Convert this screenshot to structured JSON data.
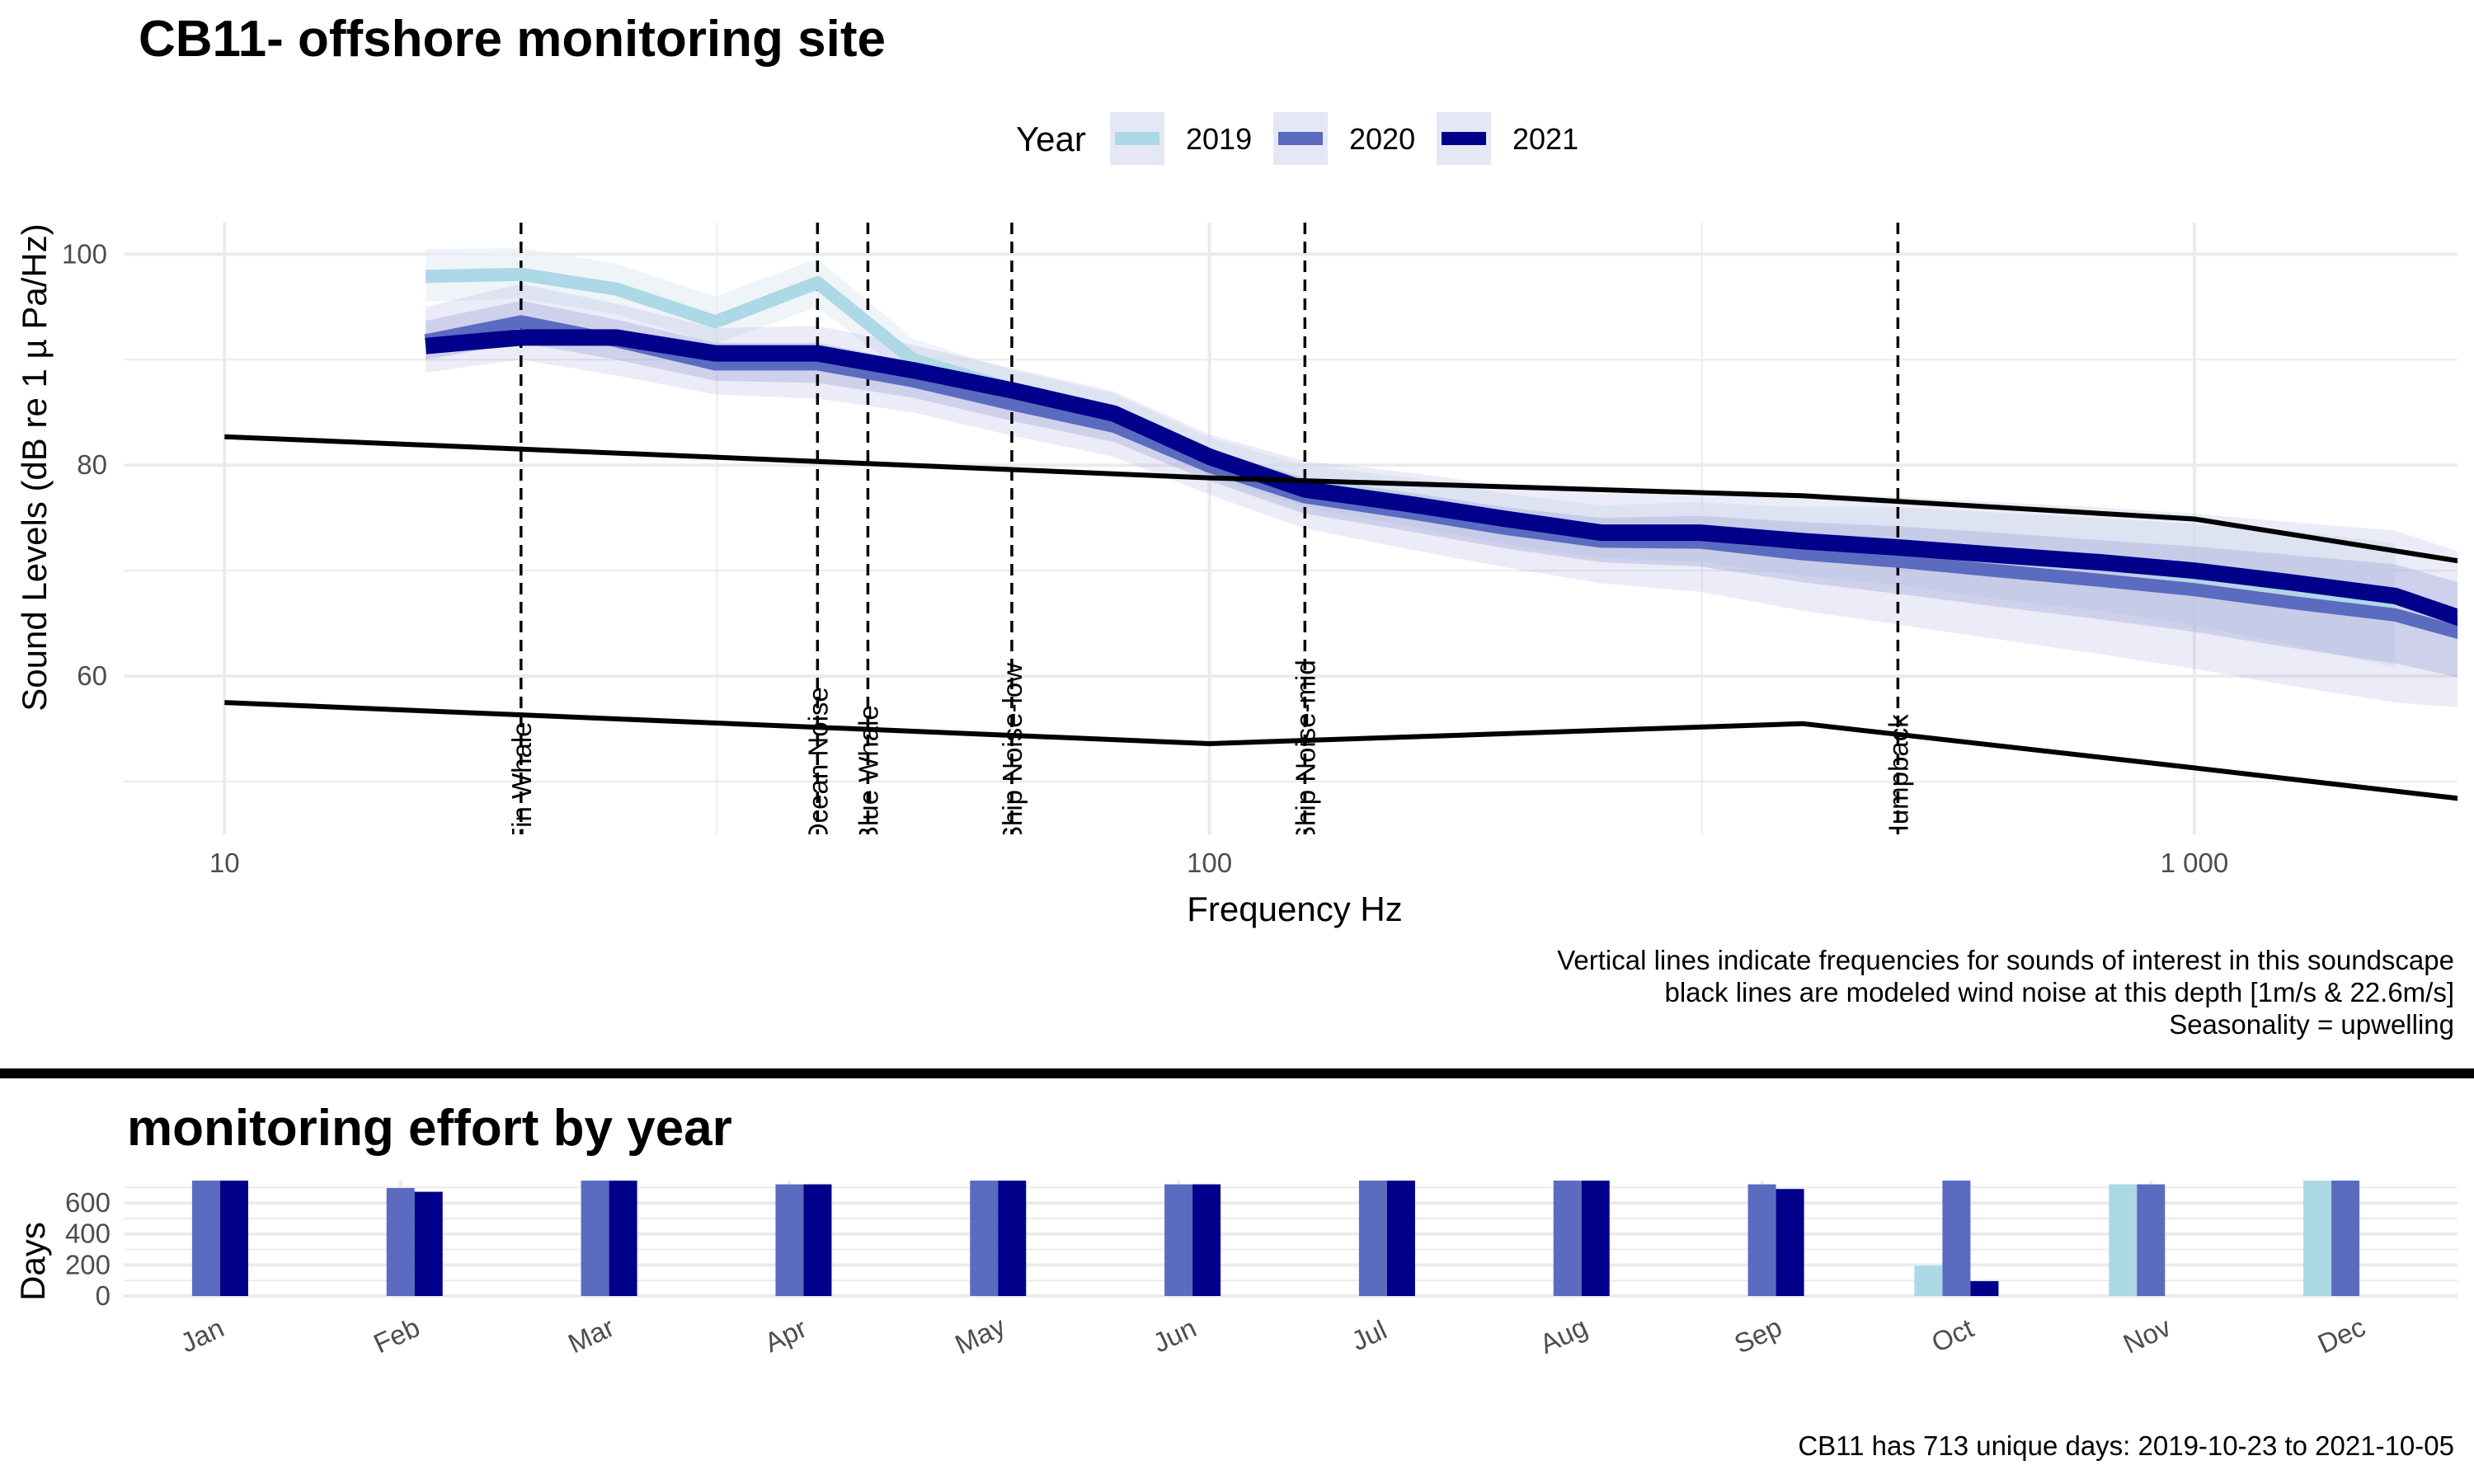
{
  "main": {
    "title": "CB11- offshore monitoring site",
    "legend_title": "Year",
    "caption_lines": [
      "Vertical lines indicate frequencies for sounds of interest in this soundscape",
      "black lines are modeled wind noise at this depth [1m/s & 22.6m/s]",
      "Seasonality = upwelling"
    ]
  },
  "effort": {
    "title": "monitoring effort by year",
    "caption": "CB11 has 713 unique days: 2019-10-23 to 2021-10-05"
  },
  "colors": {
    "y2019": "#add8e6",
    "y2020": "#5b6bbf",
    "y2021": "#00008b",
    "band": "#9aa0d6",
    "wind": "#000000",
    "grid": "#ebebeb"
  },
  "chart_data": [
    {
      "type": "line",
      "title": "CB11- offshore monitoring site",
      "xlabel": "Frequency Hz",
      "ylabel": "Sound Levels (dB re 1 µ Pa/Hz)",
      "x_scale": "log10",
      "xlim": [
        7.9,
        1850
      ],
      "ylim": [
        45,
        103
      ],
      "x_ticks": [
        10,
        100,
        1000
      ],
      "x_tick_labels": [
        "10",
        "100",
        "1 000"
      ],
      "y_ticks": [
        60,
        80,
        100
      ],
      "grid": true,
      "legend_position": "top",
      "series": [
        {
          "name": "2019",
          "x": [
            16,
            20,
            25,
            31.5,
            40,
            50,
            63,
            80,
            100,
            125,
            160,
            200,
            250,
            315,
            400,
            500,
            630,
            800,
            1000,
            1250,
            1600
          ],
          "y": [
            97.9,
            98.1,
            96.7,
            93.6,
            97.3,
            90.0,
            87.2,
            85.0,
            80.8,
            78.0,
            76.5,
            74.9,
            73.7,
            73.7,
            72.8,
            72.3,
            71.4,
            70.6,
            69.6,
            68.4,
            66.7
          ],
          "band_outer": [
            [
              95.5,
              100.5
            ],
            [
              95.8,
              100.6
            ],
            [
              94.3,
              99.1
            ],
            [
              91.5,
              96.0
            ],
            [
              95.0,
              99.6
            ],
            [
              88.0,
              92.0
            ],
            [
              85.5,
              89.0
            ],
            [
              83.2,
              86.8
            ],
            [
              79.0,
              82.6
            ],
            [
              76.0,
              80.0
            ],
            [
              74.2,
              78.8
            ],
            [
              72.5,
              77.3
            ],
            [
              71.2,
              76.2
            ],
            [
              70.8,
              76.5
            ],
            [
              69.5,
              76.0
            ],
            [
              68.6,
              76.0
            ],
            [
              67.3,
              75.5
            ],
            [
              66.2,
              75.0
            ],
            [
              64.8,
              74.4
            ],
            [
              63.0,
              73.8
            ],
            [
              60.8,
              72.6
            ]
          ]
        },
        {
          "name": "2020",
          "x": [
            16,
            20,
            25,
            31.5,
            40,
            50,
            63,
            80,
            100,
            125,
            160,
            200,
            250,
            315,
            400,
            500,
            630,
            800,
            1000,
            1250,
            1600,
            2000
          ],
          "y": [
            91.8,
            93.6,
            91.8,
            89.6,
            89.6,
            88.0,
            85.8,
            83.7,
            79.9,
            77.0,
            75.5,
            74.0,
            72.8,
            72.7,
            71.6,
            70.9,
            70.0,
            69.1,
            68.2,
            67.0,
            65.8,
            63.3
          ],
          "band_inner": [
            [
              90.0,
              93.7
            ],
            [
              91.6,
              95.6
            ],
            [
              90.0,
              93.8
            ],
            [
              88.0,
              91.6
            ],
            [
              87.8,
              91.6
            ],
            [
              86.4,
              89.8
            ],
            [
              84.2,
              87.6
            ],
            [
              82.2,
              85.5
            ],
            [
              78.5,
              81.5
            ],
            [
              75.4,
              78.8
            ],
            [
              73.7,
              77.4
            ],
            [
              72.1,
              76.0
            ],
            [
              70.8,
              75.0
            ],
            [
              70.4,
              75.2
            ],
            [
              68.9,
              74.6
            ],
            [
              67.8,
              74.2
            ],
            [
              66.6,
              73.6
            ],
            [
              65.4,
              72.9
            ],
            [
              64.2,
              72.3
            ],
            [
              62.7,
              71.5
            ],
            [
              61.2,
              70.6
            ],
            [
              59.2,
              68.0
            ]
          ],
          "band_outer": [
            [
              88.8,
              95.0
            ],
            [
              90.0,
              97.2
            ],
            [
              88.5,
              95.3
            ],
            [
              86.7,
              93.0
            ],
            [
              86.3,
              93.2
            ],
            [
              85.0,
              91.4
            ],
            [
              82.8,
              89.2
            ],
            [
              80.8,
              87.0
            ],
            [
              77.2,
              82.9
            ],
            [
              74.0,
              80.4
            ],
            [
              72.0,
              79.3
            ],
            [
              70.3,
              78.0
            ],
            [
              68.8,
              77.3
            ],
            [
              68.0,
              77.6
            ],
            [
              66.2,
              77.2
            ],
            [
              64.9,
              77.0
            ],
            [
              63.5,
              76.5
            ],
            [
              62.1,
              76.0
            ],
            [
              60.7,
              75.4
            ],
            [
              59.1,
              74.6
            ],
            [
              57.5,
              73.8
            ],
            [
              56.8,
              70.8
            ]
          ]
        },
        {
          "name": "2021",
          "x": [
            16,
            20,
            25,
            31.5,
            40,
            50,
            63,
            80,
            100,
            125,
            160,
            200,
            250,
            315,
            400,
            500,
            630,
            800,
            1000,
            1250,
            1600,
            2000
          ],
          "y": [
            91.3,
            92.1,
            92.1,
            90.6,
            90.6,
            89.0,
            87.1,
            84.9,
            80.8,
            77.7,
            76.3,
            74.9,
            73.6,
            73.6,
            72.8,
            72.2,
            71.5,
            70.8,
            70.0,
            68.9,
            67.6,
            64.5
          ]
        },
        {
          "name": "Wind noise 22.6m/s",
          "x": [
            10,
            100,
            400,
            1000,
            2500
          ],
          "y": [
            82.7,
            78.8,
            77.1,
            74.9,
            69.0
          ]
        },
        {
          "name": "Wind noise 1m/s",
          "x": [
            10,
            100,
            400,
            1000,
            2500
          ],
          "y": [
            57.5,
            53.6,
            55.5,
            51.3,
            47.0
          ]
        }
      ],
      "reference_lines": [
        {
          "x": 20,
          "label": "Fin Whale"
        },
        {
          "x": 40,
          "label": "Ocean Noise"
        },
        {
          "x": 45,
          "label": "Blue Whale"
        },
        {
          "x": 63,
          "label": "Ship Noise-low"
        },
        {
          "x": 125,
          "label": "Ship Noise-mid"
        },
        {
          "x": 500,
          "label": "Humpback"
        }
      ]
    },
    {
      "type": "bar",
      "title": "monitoring effort by year",
      "xlabel": "",
      "ylabel": "Days",
      "ylim": [
        0,
        744
      ],
      "y_ticks": [
        0,
        200,
        400,
        600
      ],
      "grid": true,
      "categories": [
        "Jan",
        "Feb",
        "Mar",
        "Apr",
        "May",
        "Jun",
        "Jul",
        "Aug",
        "Sep",
        "Oct",
        "Nov",
        "Dec"
      ],
      "series": [
        {
          "name": "2019",
          "values": [
            0,
            0,
            0,
            0,
            0,
            0,
            0,
            0,
            0,
            196,
            720,
            744
          ]
        },
        {
          "name": "2020",
          "values": [
            744,
            696,
            744,
            720,
            744,
            720,
            744,
            744,
            720,
            744,
            720,
            744
          ]
        },
        {
          "name": "2021",
          "values": [
            744,
            672,
            744,
            720,
            744,
            720,
            744,
            744,
            690,
            96,
            0,
            0
          ]
        }
      ]
    }
  ]
}
